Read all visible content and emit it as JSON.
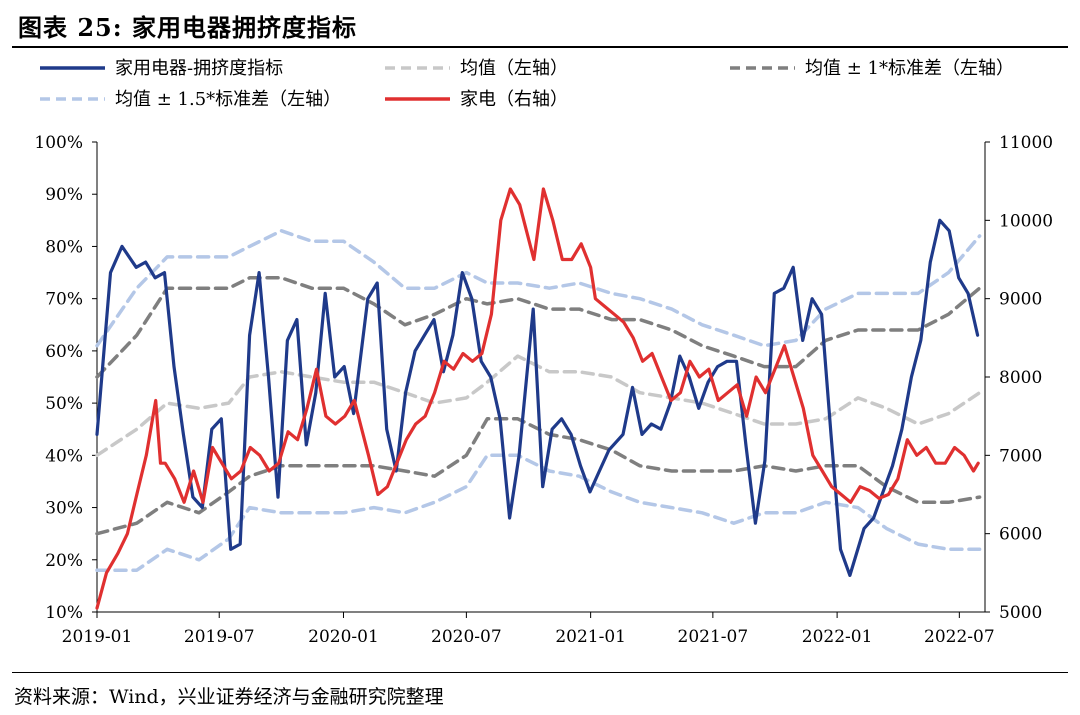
{
  "title": "图表 25:  家用电器拥挤度指标",
  "source": "资料来源：Wind，兴业证券经济与金融研究院整理",
  "chart_data": {
    "type": "line",
    "x_ticks": [
      "2019-01",
      "2019-07",
      "2020-01",
      "2020-07",
      "2021-01",
      "2021-07",
      "2022-01",
      "2022-07"
    ],
    "y_left": {
      "min": 10,
      "max": 100,
      "ticks": [
        "10%",
        "20%",
        "30%",
        "40%",
        "50%",
        "60%",
        "70%",
        "80%",
        "90%",
        "100%"
      ]
    },
    "y_right": {
      "min": 5000,
      "max": 11000,
      "ticks": [
        "5000",
        "6000",
        "7000",
        "8000",
        "9000",
        "10000",
        "11000"
      ]
    },
    "legend": [
      {
        "label": "家用电器-拥挤度指标",
        "color": "#1f3a8a",
        "style": "solid"
      },
      {
        "label": "均值（左轴）",
        "color": "#c8c8c8",
        "style": "dash"
      },
      {
        "label": "均值 ± 1*标准差（左轴）",
        "color": "#7f7f7f",
        "style": "dash"
      },
      {
        "label": "均值 ± 1.5*标准差（左轴）",
        "color": "#b4c7e7",
        "style": "dash"
      },
      {
        "label": "家电（右轴）",
        "color": "#e03030",
        "style": "solid"
      }
    ],
    "series": [
      {
        "name": "家用电器-拥挤度指标",
        "axis": "left",
        "color": "#1f3a8a",
        "dash": false,
        "x": [
          "2019-01-01",
          "2019-01-21",
          "2019-02-07",
          "2019-02-28",
          "2019-03-14",
          "2019-03-28",
          "2019-04-11",
          "2019-04-25",
          "2019-05-09",
          "2019-05-23",
          "2019-06-06",
          "2019-06-20",
          "2019-07-04",
          "2019-07-18",
          "2019-08-01",
          "2019-08-15",
          "2019-08-29",
          "2019-09-12",
          "2019-09-26",
          "2019-10-10",
          "2019-10-24",
          "2019-11-07",
          "2019-11-21",
          "2019-12-05",
          "2019-12-19",
          "2020-01-02",
          "2020-01-16",
          "2020-02-06",
          "2020-02-20",
          "2020-03-05",
          "2020-03-19",
          "2020-04-02",
          "2020-04-16",
          "2020-04-30",
          "2020-05-14",
          "2020-05-28",
          "2020-06-11",
          "2020-06-25",
          "2020-07-09",
          "2020-07-23",
          "2020-08-06",
          "2020-08-20",
          "2020-09-03",
          "2020-09-17",
          "2020-10-08",
          "2020-10-22",
          "2020-11-05",
          "2020-11-19",
          "2020-12-03",
          "2020-12-17",
          "2020-12-31",
          "2021-01-14",
          "2021-01-28",
          "2021-02-18",
          "2021-03-04",
          "2021-03-18",
          "2021-04-01",
          "2021-04-15",
          "2021-04-29",
          "2021-05-13",
          "2021-05-27",
          "2021-06-10",
          "2021-06-24",
          "2021-07-08",
          "2021-07-22",
          "2021-08-05",
          "2021-08-19",
          "2021-09-02",
          "2021-09-16",
          "2021-09-30",
          "2021-10-14",
          "2021-10-28",
          "2021-11-11",
          "2021-11-25",
          "2021-12-09",
          "2021-12-23",
          "2022-01-06",
          "2022-01-20",
          "2022-02-10",
          "2022-02-24",
          "2022-03-10",
          "2022-03-24",
          "2022-04-07",
          "2022-04-21",
          "2022-05-05",
          "2022-05-19",
          "2022-06-02",
          "2022-06-16",
          "2022-06-30",
          "2022-07-14",
          "2022-07-28"
        ],
        "y": [
          44,
          75,
          80,
          76,
          77,
          74,
          75,
          57,
          44,
          32,
          30,
          45,
          47,
          22,
          23,
          63,
          75,
          55,
          32,
          62,
          66,
          42,
          52,
          71,
          55,
          57,
          48,
          70,
          73,
          45,
          37,
          52,
          60,
          63,
          66,
          56,
          63,
          75,
          70,
          58,
          55,
          47,
          28,
          40,
          68,
          34,
          45,
          47,
          44,
          38,
          33,
          37,
          41,
          44,
          53,
          44,
          46,
          45,
          50,
          59,
          55,
          49,
          54,
          57,
          58,
          58,
          42,
          27,
          39,
          71,
          72,
          76,
          62,
          70,
          67,
          44,
          22,
          17,
          26,
          28,
          33,
          38,
          45,
          55,
          62,
          77,
          85,
          83,
          74,
          71,
          63
        ]
      },
      {
        "name": "均值（左轴）",
        "axis": "left",
        "color": "#c8c8c8",
        "dash": true,
        "x": [
          "2019-01-01",
          "2019-03-01",
          "2019-04-15",
          "2019-06-01",
          "2019-07-15",
          "2019-08-15",
          "2019-10-01",
          "2019-11-15",
          "2020-01-01",
          "2020-02-15",
          "2020-04-01",
          "2020-05-15",
          "2020-07-01",
          "2020-08-01",
          "2020-09-15",
          "2020-11-01",
          "2020-12-15",
          "2021-02-01",
          "2021-03-15",
          "2021-05-01",
          "2021-06-15",
          "2021-08-01",
          "2021-09-15",
          "2021-11-01",
          "2021-12-15",
          "2022-02-01",
          "2022-03-15",
          "2022-05-01",
          "2022-06-15",
          "2022-07-31"
        ],
        "y": [
          40,
          45,
          50,
          49,
          50,
          55,
          56,
          55,
          54,
          54,
          52,
          50,
          51,
          54,
          59,
          56,
          56,
          55,
          52,
          51,
          50,
          48,
          46,
          46,
          47,
          51,
          49,
          46,
          48,
          52
        ]
      },
      {
        "name": "均值 ± 1*标准差（左轴）",
        "axis": "left",
        "color": "#7f7f7f",
        "dash": true,
        "x": [
          "2019-01-01",
          "2019-03-01",
          "2019-04-15",
          "2019-06-01",
          "2019-07-15",
          "2019-08-15",
          "2019-10-01",
          "2019-11-15",
          "2020-01-01",
          "2020-02-15",
          "2020-04-01",
          "2020-05-15",
          "2020-07-01",
          "2020-08-01",
          "2020-09-15",
          "2020-11-01",
          "2020-12-15",
          "2021-02-01",
          "2021-03-15",
          "2021-05-01",
          "2021-06-15",
          "2021-08-01",
          "2021-09-15",
          "2021-11-01",
          "2021-12-15",
          "2022-02-01",
          "2022-03-15",
          "2022-05-01",
          "2022-06-15",
          "2022-07-31"
        ],
        "y": [
          55,
          63,
          72,
          72,
          72,
          74,
          74,
          72,
          72,
          69,
          65,
          67,
          70,
          69,
          70,
          68,
          68,
          66,
          66,
          64,
          61,
          59,
          57,
          57,
          62,
          64,
          64,
          64,
          67,
          72
        ]
      },
      {
        "name": "均值 ± 1*标准差（左轴）",
        "axis": "left",
        "color": "#7f7f7f",
        "dash": true,
        "x": [
          "2019-01-01",
          "2019-03-01",
          "2019-04-15",
          "2019-06-01",
          "2019-07-15",
          "2019-08-15",
          "2019-10-01",
          "2019-11-15",
          "2020-01-01",
          "2020-02-15",
          "2020-04-01",
          "2020-05-15",
          "2020-07-01",
          "2020-08-01",
          "2020-09-15",
          "2020-11-01",
          "2020-12-15",
          "2021-02-01",
          "2021-03-15",
          "2021-05-01",
          "2021-06-15",
          "2021-08-01",
          "2021-09-15",
          "2021-11-01",
          "2021-12-15",
          "2022-02-01",
          "2022-03-15",
          "2022-05-01",
          "2022-06-15",
          "2022-07-31"
        ],
        "y": [
          25,
          27,
          31,
          29,
          33,
          36,
          38,
          38,
          38,
          38,
          37,
          36,
          40,
          47,
          47,
          44,
          43,
          41,
          38,
          37,
          37,
          37,
          38,
          37,
          38,
          38,
          34,
          31,
          31,
          32
        ]
      },
      {
        "name": "均值 ± 1.5*标准差（左轴）",
        "axis": "left",
        "color": "#b4c7e7",
        "dash": true,
        "x": [
          "2019-01-01",
          "2019-03-01",
          "2019-04-15",
          "2019-06-01",
          "2019-07-15",
          "2019-08-15",
          "2019-10-01",
          "2019-11-15",
          "2020-01-01",
          "2020-02-15",
          "2020-04-01",
          "2020-05-15",
          "2020-07-01",
          "2020-08-01",
          "2020-09-15",
          "2020-11-01",
          "2020-12-15",
          "2021-02-01",
          "2021-03-15",
          "2021-05-01",
          "2021-06-15",
          "2021-08-01",
          "2021-09-15",
          "2021-11-01",
          "2021-12-15",
          "2022-02-01",
          "2022-03-15",
          "2022-05-01",
          "2022-06-15",
          "2022-07-31"
        ],
        "y": [
          61,
          72,
          78,
          78,
          78,
          80,
          83,
          81,
          81,
          77,
          72,
          72,
          75,
          73,
          73,
          72,
          73,
          71,
          70,
          68,
          65,
          63,
          61,
          62,
          68,
          71,
          71,
          71,
          75,
          82
        ]
      },
      {
        "name": "均值 ± 1.5*标准差（左轴）",
        "axis": "left",
        "color": "#b4c7e7",
        "dash": true,
        "x": [
          "2019-01-01",
          "2019-03-01",
          "2019-04-15",
          "2019-06-01",
          "2019-07-15",
          "2019-08-15",
          "2019-10-01",
          "2019-11-15",
          "2020-01-01",
          "2020-02-15",
          "2020-04-01",
          "2020-05-15",
          "2020-07-01",
          "2020-08-01",
          "2020-09-15",
          "2020-11-01",
          "2020-12-15",
          "2021-02-01",
          "2021-03-15",
          "2021-05-01",
          "2021-06-15",
          "2021-08-01",
          "2021-09-15",
          "2021-11-01",
          "2021-12-15",
          "2022-02-01",
          "2022-03-15",
          "2022-05-01",
          "2022-06-15",
          "2022-07-31"
        ],
        "y": [
          18,
          18,
          22,
          20,
          24,
          30,
          29,
          29,
          29,
          30,
          29,
          31,
          34,
          40,
          40,
          37,
          36,
          33,
          31,
          30,
          29,
          27,
          29,
          29,
          31,
          30,
          26,
          23,
          22,
          22
        ]
      },
      {
        "name": "家电（右轴）",
        "axis": "right",
        "color": "#e03030",
        "dash": false,
        "x": [
          "2019-01-01",
          "2019-01-15",
          "2019-02-01",
          "2019-02-15",
          "2019-03-01",
          "2019-03-15",
          "2019-03-29",
          "2019-04-05",
          "2019-04-12",
          "2019-04-26",
          "2019-05-10",
          "2019-05-24",
          "2019-06-07",
          "2019-06-21",
          "2019-07-05",
          "2019-07-19",
          "2019-08-02",
          "2019-08-16",
          "2019-08-30",
          "2019-09-13",
          "2019-09-27",
          "2019-10-11",
          "2019-10-25",
          "2019-11-08",
          "2019-11-22",
          "2019-12-06",
          "2019-12-20",
          "2020-01-03",
          "2020-01-17",
          "2020-02-07",
          "2020-02-21",
          "2020-03-06",
          "2020-03-20",
          "2020-04-03",
          "2020-04-17",
          "2020-05-01",
          "2020-05-15",
          "2020-05-29",
          "2020-06-12",
          "2020-06-26",
          "2020-07-10",
          "2020-07-24",
          "2020-08-07",
          "2020-08-21",
          "2020-09-04",
          "2020-09-18",
          "2020-10-09",
          "2020-10-23",
          "2020-11-06",
          "2020-11-20",
          "2020-12-04",
          "2020-12-18",
          "2021-01-01",
          "2021-01-08",
          "2021-01-22",
          "2021-02-05",
          "2021-02-19",
          "2021-03-05",
          "2021-03-19",
          "2021-04-02",
          "2021-04-16",
          "2021-04-30",
          "2021-05-14",
          "2021-05-28",
          "2021-06-11",
          "2021-06-25",
          "2021-07-09",
          "2021-07-23",
          "2021-08-06",
          "2021-08-20",
          "2021-09-03",
          "2021-09-17",
          "2021-10-01",
          "2021-10-15",
          "2021-10-29",
          "2021-11-12",
          "2021-11-26",
          "2021-12-10",
          "2021-12-24",
          "2022-01-07",
          "2022-01-21",
          "2022-02-04",
          "2022-02-18",
          "2022-03-04",
          "2022-03-18",
          "2022-04-01",
          "2022-04-15",
          "2022-04-29",
          "2022-05-13",
          "2022-05-27",
          "2022-06-10",
          "2022-06-24",
          "2022-07-08",
          "2022-07-22",
          "2022-07-29"
        ],
        "y": [
          5050,
          5500,
          5750,
          6000,
          6500,
          7000,
          7700,
          6900,
          6900,
          6700,
          6400,
          6800,
          6400,
          7100,
          6900,
          6700,
          6800,
          7100,
          7000,
          6800,
          6900,
          7300,
          7200,
          7600,
          8100,
          7500,
          7400,
          7500,
          7700,
          7000,
          6500,
          6600,
          6900,
          7200,
          7400,
          7500,
          7800,
          8200,
          8100,
          8300,
          8200,
          8300,
          8800,
          10000,
          10400,
          10200,
          9500,
          10400,
          10000,
          9500,
          9500,
          9700,
          9400,
          9000,
          8900,
          8800,
          8700,
          8500,
          8200,
          8300,
          8000,
          7700,
          7800,
          8200,
          8000,
          8100,
          7700,
          7800,
          7900,
          7500,
          8000,
          7800,
          8100,
          8400,
          8000,
          7600,
          7000,
          6800,
          6600,
          6500,
          6400,
          6600,
          6550,
          6450,
          6500,
          6700,
          7200,
          7000,
          7100,
          6900,
          6900,
          7100,
          7000,
          6800,
          6900
        ]
      }
    ]
  }
}
